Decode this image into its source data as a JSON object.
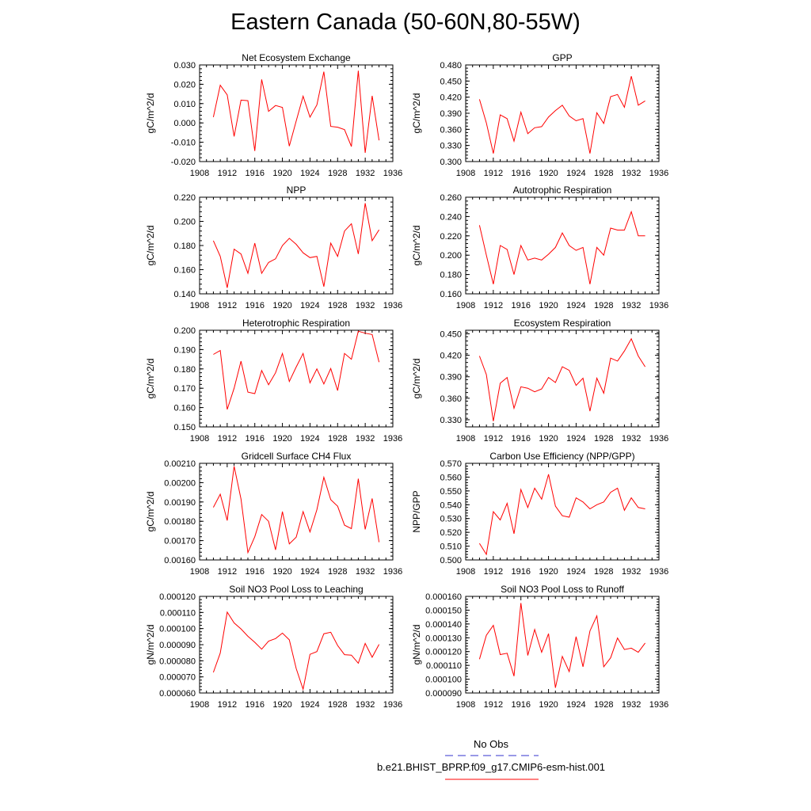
{
  "title": "Eastern Canada (50-60N,80-55W)",
  "legend": {
    "obs_label": "No Obs",
    "obs_color": "#3333cc",
    "model_label": "b.e21.BHIST_BPRP.f09_g17.CMIP6-esm-hist.001",
    "model_color": "#ff0000"
  },
  "chart_data": [
    {
      "type": "line",
      "title": "Net Ecosystem Exchange",
      "ylabel": "gC/m^2/d",
      "xlim": [
        1908,
        1936
      ],
      "xticks": [
        1908,
        1912,
        1916,
        1920,
        1924,
        1928,
        1932,
        1936
      ],
      "ylim": [
        -0.02,
        0.03
      ],
      "yticks": [
        "-0.020",
        "-0.010",
        "0.000",
        "0.010",
        "0.020",
        "0.030"
      ],
      "x": [
        1910,
        1911,
        1912,
        1913,
        1914,
        1915,
        1916,
        1917,
        1918,
        1919,
        1920,
        1921,
        1922,
        1923,
        1924,
        1925,
        1926,
        1927,
        1928,
        1929,
        1930,
        1931,
        1932,
        1933,
        1934
      ],
      "y": [
        0.003,
        0.0195,
        0.0145,
        -0.007,
        0.0118,
        0.0115,
        -0.0145,
        0.0225,
        0.006,
        0.009,
        0.008,
        -0.012,
        0.001,
        0.0138,
        0.003,
        0.0093,
        0.0265,
        -0.0018,
        -0.0022,
        -0.0035,
        -0.0122,
        0.027,
        -0.0155,
        0.014,
        -0.009
      ]
    },
    {
      "type": "line",
      "title": "GPP",
      "ylabel": "gC/m^2/d",
      "xlim": [
        1908,
        1936
      ],
      "xticks": [
        1908,
        1912,
        1916,
        1920,
        1924,
        1928,
        1932,
        1936
      ],
      "ylim": [
        0.3,
        0.48
      ],
      "yticks": [
        "0.300",
        "0.330",
        "0.360",
        "0.390",
        "0.420",
        "0.450",
        "0.480"
      ],
      "x": [
        1910,
        1911,
        1912,
        1913,
        1914,
        1915,
        1916,
        1917,
        1918,
        1919,
        1920,
        1921,
        1922,
        1923,
        1924,
        1925,
        1926,
        1927,
        1928,
        1929,
        1930,
        1931,
        1932,
        1933,
        1934
      ],
      "y": [
        0.416,
        0.372,
        0.315,
        0.387,
        0.38,
        0.338,
        0.392,
        0.352,
        0.363,
        0.365,
        0.383,
        0.395,
        0.405,
        0.385,
        0.376,
        0.38,
        0.315,
        0.391,
        0.371,
        0.421,
        0.425,
        0.401,
        0.459,
        0.405,
        0.413
      ]
    },
    {
      "type": "line",
      "title": "NPP",
      "ylabel": "gC/m^2/d",
      "xlim": [
        1908,
        1936
      ],
      "xticks": [
        1908,
        1912,
        1916,
        1920,
        1924,
        1928,
        1932,
        1936
      ],
      "ylim": [
        0.14,
        0.22
      ],
      "yticks": [
        "0.140",
        "0.160",
        "0.180",
        "0.200",
        "0.220"
      ],
      "x": [
        1910,
        1911,
        1912,
        1913,
        1914,
        1915,
        1916,
        1917,
        1918,
        1919,
        1920,
        1921,
        1922,
        1923,
        1924,
        1925,
        1926,
        1927,
        1928,
        1929,
        1930,
        1931,
        1932,
        1933,
        1934
      ],
      "y": [
        0.184,
        0.171,
        0.145,
        0.177,
        0.173,
        0.157,
        0.182,
        0.157,
        0.166,
        0.169,
        0.18,
        0.186,
        0.181,
        0.174,
        0.17,
        0.171,
        0.146,
        0.182,
        0.171,
        0.192,
        0.198,
        0.173,
        0.215,
        0.184,
        0.193
      ]
    },
    {
      "type": "line",
      "title": "Autotrophic Respiration",
      "ylabel": "gC/m^2/d",
      "xlim": [
        1908,
        1936
      ],
      "xticks": [
        1908,
        1912,
        1916,
        1920,
        1924,
        1928,
        1932,
        1936
      ],
      "ylim": [
        0.16,
        0.26
      ],
      "yticks": [
        "0.160",
        "0.180",
        "0.200",
        "0.220",
        "0.240",
        "0.260"
      ],
      "x": [
        1910,
        1911,
        1912,
        1913,
        1914,
        1915,
        1916,
        1917,
        1918,
        1919,
        1920,
        1921,
        1922,
        1923,
        1924,
        1925,
        1926,
        1927,
        1928,
        1929,
        1930,
        1931,
        1932,
        1933,
        1934
      ],
      "y": [
        0.231,
        0.2,
        0.17,
        0.21,
        0.206,
        0.18,
        0.21,
        0.195,
        0.197,
        0.195,
        0.201,
        0.208,
        0.223,
        0.21,
        0.205,
        0.208,
        0.17,
        0.208,
        0.2,
        0.228,
        0.226,
        0.226,
        0.245,
        0.22,
        0.22
      ]
    },
    {
      "type": "line",
      "title": "Heterotrophic Respiration",
      "ylabel": "gC/m^2/d",
      "xlim": [
        1908,
        1936
      ],
      "xticks": [
        1908,
        1912,
        1916,
        1920,
        1924,
        1928,
        1932,
        1936
      ],
      "ylim": [
        0.15,
        0.2
      ],
      "yticks": [
        "0.150",
        "0.160",
        "0.170",
        "0.180",
        "0.190",
        "0.200"
      ],
      "x": [
        1910,
        1911,
        1912,
        1913,
        1914,
        1915,
        1916,
        1917,
        1918,
        1919,
        1920,
        1921,
        1922,
        1923,
        1924,
        1925,
        1926,
        1927,
        1928,
        1929,
        1930,
        1931,
        1932,
        1933,
        1934
      ],
      "y": [
        0.1875,
        0.1895,
        0.159,
        0.17,
        0.184,
        0.168,
        0.1672,
        0.1792,
        0.1718,
        0.178,
        0.188,
        0.1735,
        0.181,
        0.188,
        0.1728,
        0.18,
        0.1722,
        0.1802,
        0.1688,
        0.188,
        0.185,
        0.1995,
        0.1985,
        0.1978,
        0.1835
      ]
    },
    {
      "type": "line",
      "title": "Ecosystem Respiration",
      "ylabel": "gC/m^2/d",
      "xlim": [
        1908,
        1936
      ],
      "xticks": [
        1908,
        1912,
        1916,
        1920,
        1924,
        1928,
        1932,
        1936
      ],
      "ylim": [
        0.32,
        0.455
      ],
      "yticks": [
        "0.330",
        "0.360",
        "0.390",
        "0.420",
        "0.450"
      ],
      "x": [
        1910,
        1911,
        1912,
        1913,
        1914,
        1915,
        1916,
        1917,
        1918,
        1919,
        1920,
        1921,
        1922,
        1923,
        1924,
        1925,
        1926,
        1927,
        1928,
        1929,
        1930,
        1931,
        1932,
        1933,
        1934
      ],
      "y": [
        0.419,
        0.393,
        0.328,
        0.381,
        0.389,
        0.346,
        0.376,
        0.374,
        0.369,
        0.373,
        0.389,
        0.382,
        0.404,
        0.399,
        0.378,
        0.388,
        0.342,
        0.388,
        0.367,
        0.416,
        0.412,
        0.426,
        0.443,
        0.419,
        0.404
      ]
    },
    {
      "type": "line",
      "title": "Gridcell Surface CH4 Flux",
      "ylabel": "gC/m^2/d",
      "xlim": [
        1908,
        1936
      ],
      "xticks": [
        1908,
        1912,
        1916,
        1920,
        1924,
        1928,
        1932,
        1936
      ],
      "ylim": [
        0.0016,
        0.0021
      ],
      "yticks": [
        "0.00160",
        "0.00170",
        "0.00180",
        "0.00190",
        "0.00200",
        "0.00210"
      ],
      "x": [
        1910,
        1911,
        1912,
        1913,
        1914,
        1915,
        1916,
        1917,
        1918,
        1919,
        1920,
        1921,
        1922,
        1923,
        1924,
        1925,
        1926,
        1927,
        1928,
        1929,
        1930,
        1931,
        1932,
        1933,
        1934
      ],
      "y": [
        0.001872,
        0.00194,
        0.001804,
        0.002085,
        0.001915,
        0.001638,
        0.00172,
        0.001835,
        0.0018,
        0.001652,
        0.00185,
        0.001683,
        0.001718,
        0.00185,
        0.001745,
        0.00186,
        0.002028,
        0.001912,
        0.001878,
        0.00178,
        0.001762,
        0.00202,
        0.001758,
        0.001918,
        0.001692
      ]
    },
    {
      "type": "line",
      "title": "Carbon Use Efficiency (NPP/GPP)",
      "ylabel": "NPP/GPP",
      "xlim": [
        1908,
        1936
      ],
      "xticks": [
        1908,
        1912,
        1916,
        1920,
        1924,
        1928,
        1932,
        1936
      ],
      "ylim": [
        0.5,
        0.57
      ],
      "yticks": [
        "0.500",
        "0.510",
        "0.520",
        "0.530",
        "0.540",
        "0.550",
        "0.560",
        "0.570"
      ],
      "x": [
        1910,
        1911,
        1912,
        1913,
        1914,
        1915,
        1916,
        1917,
        1918,
        1919,
        1920,
        1921,
        1922,
        1923,
        1924,
        1925,
        1926,
        1927,
        1928,
        1929,
        1930,
        1931,
        1932,
        1933,
        1934
      ],
      "y": [
        0.512,
        0.504,
        0.535,
        0.529,
        0.541,
        0.519,
        0.551,
        0.538,
        0.552,
        0.544,
        0.562,
        0.539,
        0.532,
        0.531,
        0.545,
        0.542,
        0.537,
        0.54,
        0.542,
        0.549,
        0.552,
        0.536,
        0.545,
        0.538,
        0.537
      ]
    },
    {
      "type": "line",
      "title": "Soil NO3 Pool Loss to Leaching",
      "ylabel": "gN/m^2/d",
      "xlim": [
        1908,
        1936
      ],
      "xticks": [
        1908,
        1912,
        1916,
        1920,
        1924,
        1928,
        1932,
        1936
      ],
      "ylim": [
        6e-05,
        0.00012
      ],
      "yticks": [
        "0.000060",
        "0.000070",
        "0.000080",
        "0.000090",
        "0.000100",
        "0.000110",
        "0.000120"
      ],
      "x": [
        1910,
        1911,
        1912,
        1913,
        1914,
        1915,
        1916,
        1917,
        1918,
        1919,
        1920,
        1921,
        1922,
        1923,
        1924,
        1925,
        1926,
        1927,
        1928,
        1929,
        1930,
        1931,
        1932,
        1933,
        1934
      ],
      "y": [
        7.28e-05,
        8.48e-05,
        0.0001102,
        0.0001035,
        9.98e-05,
        9.52e-05,
        9.15e-05,
        8.72e-05,
        9.22e-05,
        9.38e-05,
        9.72e-05,
        9.3e-05,
        7.52e-05,
        6.23e-05,
        8.4e-05,
        8.57e-05,
        9.68e-05,
        9.77e-05,
        8.95e-05,
        8.38e-05,
        8.35e-05,
        7.85e-05,
        9.08e-05,
        8.22e-05,
        9.02e-05
      ]
    },
    {
      "type": "line",
      "title": "Soil NO3 Pool Loss to Runoff",
      "ylabel": "gN/m^2/d",
      "xlim": [
        1908,
        1936
      ],
      "xticks": [
        1908,
        1912,
        1916,
        1920,
        1924,
        1928,
        1932,
        1936
      ],
      "ylim": [
        9e-05,
        0.00016
      ],
      "yticks": [
        "0.000090",
        "0.000100",
        "0.000110",
        "0.000120",
        "0.000130",
        "0.000140",
        "0.000150",
        "0.000160"
      ],
      "x": [
        1910,
        1911,
        1912,
        1913,
        1914,
        1915,
        1916,
        1917,
        1918,
        1919,
        1920,
        1921,
        1922,
        1923,
        1924,
        1925,
        1926,
        1927,
        1928,
        1929,
        1930,
        1931,
        1932,
        1933,
        1934
      ],
      "y": [
        0.0001145,
        0.0001318,
        0.000139,
        0.0001178,
        0.0001188,
        0.0001022,
        0.0001552,
        0.0001172,
        0.000136,
        0.0001195,
        0.000133,
        9.38e-05,
        0.0001165,
        0.0001055,
        0.0001308,
        0.000109,
        0.000135,
        0.0001458,
        0.000109,
        0.0001155,
        0.0001298,
        0.0001215,
        0.0001225,
        0.0001195,
        0.0001262
      ]
    }
  ]
}
